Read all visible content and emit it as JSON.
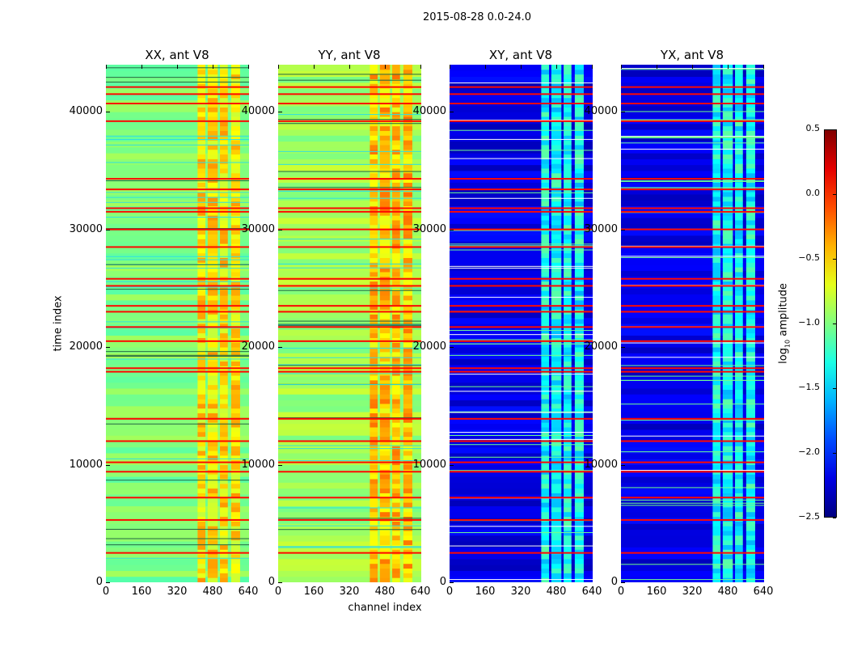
{
  "chart_data": {
    "type": "heatmap",
    "suptitle": "2015-08-28 0.0-24.0",
    "xlabel": "channel index",
    "ylabel": "time index",
    "xlim": [
      0,
      640
    ],
    "ylim": [
      0,
      44000
    ],
    "x_ticks": [
      "0",
      "160",
      "320",
      "480",
      "640"
    ],
    "y_ticks": [
      "0",
      "10000",
      "20000",
      "30000",
      "40000"
    ],
    "panels": [
      {
        "title": "XX, ant V8",
        "base_value": -1.0,
        "band_value": -0.55
      },
      {
        "title": "YY, ant V8",
        "base_value": -0.9,
        "band_value": -0.45
      },
      {
        "title": "XY, ant V8",
        "base_value": -2.2,
        "band_value": -1.35
      },
      {
        "title": "YX, ant V8",
        "base_value": -2.2,
        "band_value": -1.35
      }
    ],
    "column_bands": [
      [
        410,
        445
      ],
      [
        455,
        500
      ],
      [
        510,
        545
      ],
      [
        560,
        600
      ]
    ],
    "flagged_rows": [
      2500,
      5300,
      7200,
      9400,
      10200,
      12000,
      13900,
      17900,
      18200,
      20500,
      21700,
      23000,
      23500,
      25200,
      25800,
      28500,
      30000,
      31500,
      31800,
      33400,
      34300,
      39200,
      40700,
      41500,
      42100
    ],
    "flagged_value": 0.1,
    "colorbar": {
      "label": "log10 amplitude",
      "label_main": "log",
      "label_sub": "10",
      "label_rest": " amplitude",
      "range": [
        -2.5,
        0.5
      ],
      "ticks": [
        "0.5",
        "0.0",
        "−0.5",
        "−1.0",
        "−1.5",
        "−2.0",
        "−2.5"
      ],
      "tick_values": [
        0.5,
        0.0,
        -0.5,
        -1.0,
        -1.5,
        -2.0,
        -2.5
      ],
      "colormap": "jet"
    }
  }
}
